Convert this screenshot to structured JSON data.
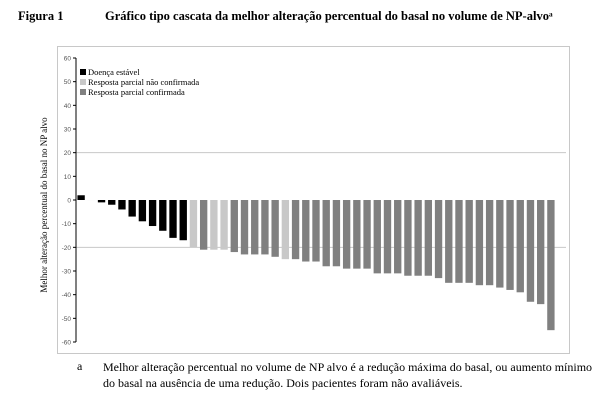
{
  "figure": {
    "label": "Figura 1",
    "title": "Gráfico tipo cascata da melhor alteração percentual do basal no volume de NP-alvoᵃ"
  },
  "footnote": {
    "marker": "a",
    "text": "Melhor alteração percentual no volume de NP alvo é a redução máxima do basal, ou aumento mínimo do basal na ausência de uma redução. Dois pacientes foram não avaliáveis."
  },
  "chart_data": {
    "type": "bar",
    "ylabel": "Melhor alteração percentual do basal no NP alvo",
    "ylim": [
      -60,
      60
    ],
    "yticks": [
      60,
      50,
      40,
      30,
      20,
      10,
      0,
      -10,
      -20,
      -30,
      -40,
      -50,
      -60
    ],
    "ytick_labels": [
      "60",
      "50",
      "40",
      "30",
      "20",
      "10",
      "0",
      "-10",
      "-20",
      "-30",
      "-40",
      "-50",
      "-60"
    ],
    "gridlines_at": [
      20,
      -20
    ],
    "legend_position": "top-left",
    "series_colors": {
      "stable": "#000000",
      "unconfirmed": "#c8c8c8",
      "confirmed": "#808080"
    },
    "series": [
      {
        "key": "stable",
        "name": "Doença estável"
      },
      {
        "key": "unconfirmed",
        "name": "Resposta parcial não confirmada"
      },
      {
        "key": "confirmed",
        "name": "Resposta parcial confirmada"
      }
    ],
    "bars": [
      {
        "value": 2,
        "group": "stable"
      },
      {
        "value": 0,
        "group": "stable"
      },
      {
        "value": -1,
        "group": "stable"
      },
      {
        "value": -2,
        "group": "stable"
      },
      {
        "value": -4,
        "group": "stable"
      },
      {
        "value": -7,
        "group": "stable"
      },
      {
        "value": -9,
        "group": "stable"
      },
      {
        "value": -11,
        "group": "stable"
      },
      {
        "value": -13,
        "group": "stable"
      },
      {
        "value": -16,
        "group": "stable"
      },
      {
        "value": -17,
        "group": "stable"
      },
      {
        "value": -20,
        "group": "unconfirmed"
      },
      {
        "value": -21,
        "group": "confirmed"
      },
      {
        "value": -21,
        "group": "unconfirmed"
      },
      {
        "value": -21,
        "group": "unconfirmed"
      },
      {
        "value": -22,
        "group": "confirmed"
      },
      {
        "value": -23,
        "group": "confirmed"
      },
      {
        "value": -23,
        "group": "confirmed"
      },
      {
        "value": -23,
        "group": "confirmed"
      },
      {
        "value": -24,
        "group": "confirmed"
      },
      {
        "value": -25,
        "group": "unconfirmed"
      },
      {
        "value": -25,
        "group": "confirmed"
      },
      {
        "value": -26,
        "group": "confirmed"
      },
      {
        "value": -26,
        "group": "confirmed"
      },
      {
        "value": -28,
        "group": "confirmed"
      },
      {
        "value": -28,
        "group": "confirmed"
      },
      {
        "value": -29,
        "group": "confirmed"
      },
      {
        "value": -29,
        "group": "confirmed"
      },
      {
        "value": -29,
        "group": "confirmed"
      },
      {
        "value": -31,
        "group": "confirmed"
      },
      {
        "value": -31,
        "group": "confirmed"
      },
      {
        "value": -31,
        "group": "confirmed"
      },
      {
        "value": -32,
        "group": "confirmed"
      },
      {
        "value": -32,
        "group": "confirmed"
      },
      {
        "value": -32,
        "group": "confirmed"
      },
      {
        "value": -33,
        "group": "confirmed"
      },
      {
        "value": -35,
        "group": "confirmed"
      },
      {
        "value": -35,
        "group": "confirmed"
      },
      {
        "value": -35,
        "group": "confirmed"
      },
      {
        "value": -36,
        "group": "confirmed"
      },
      {
        "value": -36,
        "group": "confirmed"
      },
      {
        "value": -37,
        "group": "confirmed"
      },
      {
        "value": -38,
        "group": "confirmed"
      },
      {
        "value": -39,
        "group": "confirmed"
      },
      {
        "value": -43,
        "group": "confirmed"
      },
      {
        "value": -44,
        "group": "confirmed"
      },
      {
        "value": -55,
        "group": "confirmed"
      }
    ]
  }
}
